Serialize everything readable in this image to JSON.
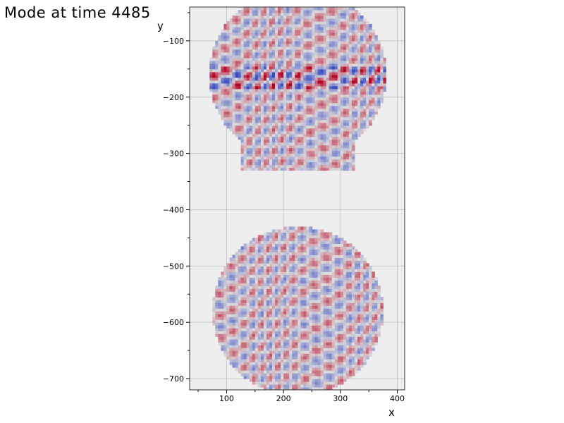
{
  "chart_data": {
    "type": "heatmap",
    "title": "Mode at time 4485",
    "xlabel": "x",
    "ylabel": "y",
    "xlim": [
      35,
      413
    ],
    "ylim": [
      -720,
      -40
    ],
    "xticks": [
      100,
      200,
      300,
      400
    ],
    "yticks": [
      -100,
      -200,
      -300,
      -400,
      -500,
      -600,
      -700
    ],
    "grid": true,
    "colormap": "coolwarm",
    "background_color": "#eeeeee",
    "domain_shape": "dumbbell",
    "domain_regions": [
      {
        "name": "upper-bulb",
        "center": [
          225,
          -160
        ],
        "radius": 155
      },
      {
        "name": "neck",
        "x_range": [
          127,
          323
        ],
        "y_range": [
          -330,
          -210
        ]
      },
      {
        "name": "lower-bulb",
        "center": [
          225,
          -580
        ],
        "radius": 150
      }
    ],
    "pattern": "diagonal oscillatory stripes, amplitude approx. -1 to 1"
  }
}
